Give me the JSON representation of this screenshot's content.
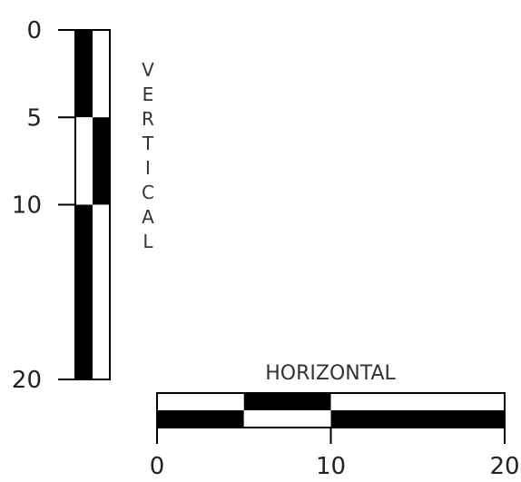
{
  "vertical_bar": {
    "title": "VERTICAL",
    "ticks": [
      {
        "label": "0",
        "value": 0
      },
      {
        "label": "5",
        "value": 5
      },
      {
        "label": "10",
        "value": 10
      },
      {
        "label": "20",
        "value": 20
      }
    ],
    "range": [
      0,
      20
    ],
    "left_column_segments": [
      {
        "from": 0,
        "to": 5,
        "color": "black"
      },
      {
        "from": 5,
        "to": 10,
        "color": "white"
      },
      {
        "from": 10,
        "to": 20,
        "color": "black"
      }
    ],
    "right_column_segments": [
      {
        "from": 0,
        "to": 5,
        "color": "white"
      },
      {
        "from": 5,
        "to": 10,
        "color": "black"
      },
      {
        "from": 10,
        "to": 20,
        "color": "white"
      }
    ]
  },
  "horizontal_bar": {
    "title": "HORIZONTAL",
    "ticks": [
      {
        "label": "0",
        "value": 0
      },
      {
        "label": "10",
        "value": 10
      },
      {
        "label": "20",
        "value": 20
      }
    ],
    "range": [
      0,
      20
    ],
    "top_row_segments": [
      {
        "from": 0,
        "to": 5,
        "color": "white"
      },
      {
        "from": 5,
        "to": 10,
        "color": "black"
      },
      {
        "from": 10,
        "to": 20,
        "color": "white"
      }
    ],
    "bottom_row_segments": [
      {
        "from": 0,
        "to": 5,
        "color": "black"
      },
      {
        "from": 5,
        "to": 10,
        "color": "white"
      },
      {
        "from": 10,
        "to": 20,
        "color": "black"
      }
    ]
  },
  "colors": {
    "black": "#000000",
    "white": "#ffffff"
  }
}
